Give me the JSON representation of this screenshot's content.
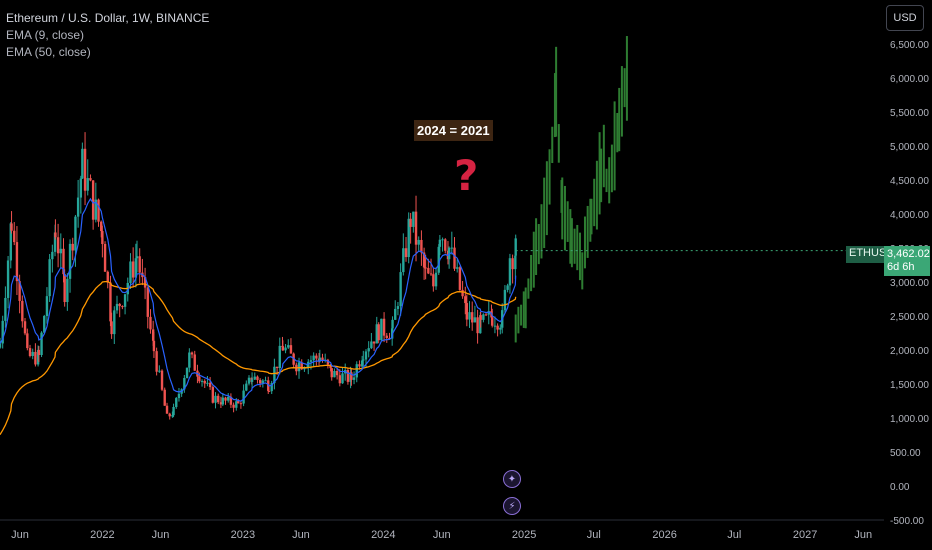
{
  "header": {
    "title": "Ethereum / U.S. Dollar, 1W, BINANCE",
    "indicators": [
      "EMA (9, close)",
      "EMA (50, close)"
    ]
  },
  "currency_button": "USD",
  "symbol_tag": "ETHUSD",
  "last_price": "3,462.02",
  "countdown": "6d 6h",
  "annotation": "2024 = 2021",
  "question_mark": "?",
  "event_icons": [
    "sparkle-icon",
    "lightning-icon"
  ],
  "colors": {
    "up": "#26a69a",
    "down": "#ef5350",
    "ema9": "#2962ff",
    "ema50": "#ff9800",
    "projection": "#2e7d32",
    "price_tag": "#3ba776",
    "annotation_bg": "#3d2512",
    "question": "#d62342"
  },
  "chart_data": {
    "type": "candlestick",
    "y_ticks": [
      "6,500.00",
      "6,000.00",
      "5,500.00",
      "5,000.00",
      "4,500.00",
      "4,000.00",
      "3,500.00",
      "3,000.00",
      "2,500.00",
      "2,000.00",
      "1,500.00",
      "1,000.00",
      "500.00",
      "0.00",
      "-500.00"
    ],
    "y_tick_values": [
      6500,
      6000,
      5500,
      5000,
      4500,
      4000,
      3500,
      3000,
      2500,
      2000,
      1500,
      1000,
      500,
      0,
      -500
    ],
    "ylim": [
      -500,
      7150
    ],
    "x_ticks": [
      {
        "label": "Jun",
        "date": "2021-06-01"
      },
      {
        "label": "2022",
        "date": "2022-01-01"
      },
      {
        "label": "Jun",
        "date": "2022-06-01"
      },
      {
        "label": "2023",
        "date": "2023-01-01"
      },
      {
        "label": "Jun",
        "date": "2023-06-01"
      },
      {
        "label": "2024",
        "date": "2024-01-01"
      },
      {
        "label": "Jun",
        "date": "2024-06-01"
      },
      {
        "label": "2025",
        "date": "2025-01-01"
      },
      {
        "label": "Jul",
        "date": "2025-07-01"
      },
      {
        "label": "2026",
        "date": "2026-01-01"
      },
      {
        "label": "Jul",
        "date": "2026-07-01"
      },
      {
        "label": "2027",
        "date": "2027-01-01"
      },
      {
        "label": "Jun",
        "date": "2027-06-01"
      }
    ],
    "xlim": [
      "2021-04-10",
      "2027-07-25"
    ],
    "price_anchors": [
      [
        "2021-04-10",
        2100
      ],
      [
        "2021-05-10",
        3900
      ],
      [
        "2021-06-20",
        1900
      ],
      [
        "2021-07-20",
        1900
      ],
      [
        "2021-09-01",
        3800
      ],
      [
        "2021-09-25",
        2900
      ],
      [
        "2021-11-10",
        4700
      ],
      [
        "2022-01-01",
        3700
      ],
      [
        "2022-01-25",
        2400
      ],
      [
        "2022-03-01",
        2900
      ],
      [
        "2022-04-01",
        3400
      ],
      [
        "2022-05-15",
        2000
      ],
      [
        "2022-06-18",
        1000
      ],
      [
        "2022-07-05",
        1100
      ],
      [
        "2022-08-15",
        1900
      ],
      [
        "2022-09-10",
        1650
      ],
      [
        "2022-10-15",
        1300
      ],
      [
        "2022-11-10",
        1250
      ],
      [
        "2022-12-20",
        1200
      ],
      [
        "2023-01-25",
        1600
      ],
      [
        "2023-03-10",
        1500
      ],
      [
        "2023-04-15",
        2050
      ],
      [
        "2023-05-20",
        1800
      ],
      [
        "2023-06-20",
        1850
      ],
      [
        "2023-07-20",
        1900
      ],
      [
        "2023-08-20",
        1650
      ],
      [
        "2023-10-10",
        1580
      ],
      [
        "2023-11-10",
        2000
      ],
      [
        "2023-12-20",
        2300
      ],
      [
        "2024-01-25",
        2300
      ],
      [
        "2024-03-12",
        3950
      ],
      [
        "2024-04-20",
        3100
      ],
      [
        "2024-05-10",
        2950
      ],
      [
        "2024-05-27",
        3800
      ],
      [
        "2024-06-20",
        3500
      ],
      [
        "2024-08-05",
        2500
      ],
      [
        "2024-09-10",
        2350
      ],
      [
        "2024-10-10",
        2500
      ],
      [
        "2024-11-05",
        2450
      ],
      [
        "2024-11-25",
        3400
      ],
      [
        "2024-12-10",
        3462
      ]
    ],
    "projection_anchors": [
      [
        "2024-12-10",
        2200
      ],
      [
        "2025-01-05",
        2700
      ],
      [
        "2025-02-01",
        3500
      ],
      [
        "2025-03-01",
        4300
      ],
      [
        "2025-03-25",
        5700
      ],
      [
        "2025-04-10",
        4100
      ],
      [
        "2025-05-05",
        3500
      ],
      [
        "2025-06-01",
        3300
      ],
      [
        "2025-06-25",
        3900
      ],
      [
        "2025-07-20",
        4800
      ],
      [
        "2025-08-10",
        4300
      ],
      [
        "2025-09-05",
        5500
      ],
      [
        "2025-09-25",
        5900
      ]
    ],
    "last_close": 3462.02
  }
}
